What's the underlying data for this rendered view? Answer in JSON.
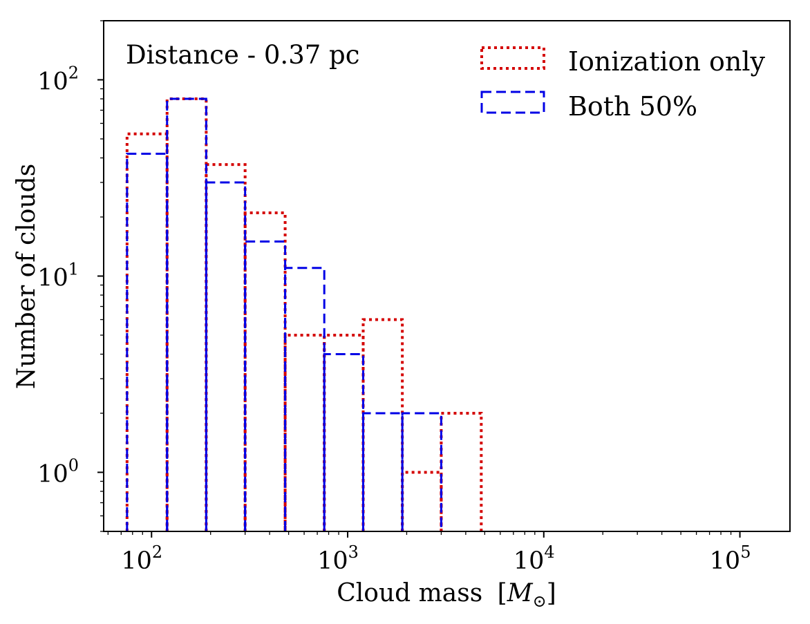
{
  "chart_data": {
    "type": "histogram",
    "annotation": "Distance - 0.37 pc",
    "xlabel": "Cloud mass",
    "xlabel_unit": "M",
    "xlabel_unit_sub": "⊙",
    "ylabel": "Number of clouds",
    "xscale": "log",
    "yscale": "log",
    "xlim": [
      57,
      180000
    ],
    "ylim": [
      0.5,
      200
    ],
    "x_ticks": [
      {
        "value": 100,
        "base": "10",
        "exp": "2"
      },
      {
        "value": 1000,
        "base": "10",
        "exp": "3"
      },
      {
        "value": 10000,
        "base": "10",
        "exp": "4"
      },
      {
        "value": 100000,
        "base": "10",
        "exp": "5"
      }
    ],
    "y_ticks": [
      {
        "value": 1,
        "base": "10",
        "exp": "0"
      },
      {
        "value": 10,
        "base": "10",
        "exp": "1"
      },
      {
        "value": 100,
        "base": "10",
        "exp": "2"
      }
    ],
    "bin_edges": [
      75,
      120,
      190,
      300,
      480,
      760,
      1200,
      1900,
      3000,
      4800
    ],
    "legend_position": "top-right",
    "series": [
      {
        "name": "Ionization only",
        "style": "dotted",
        "color": "#d40000",
        "counts": [
          53,
          80,
          37,
          21,
          5,
          5,
          6,
          1,
          2
        ]
      },
      {
        "name": "Both 50%",
        "style": "dashed",
        "color": "#0000e6",
        "counts": [
          42,
          80,
          30,
          15,
          11,
          4,
          2,
          2,
          0
        ]
      }
    ]
  }
}
